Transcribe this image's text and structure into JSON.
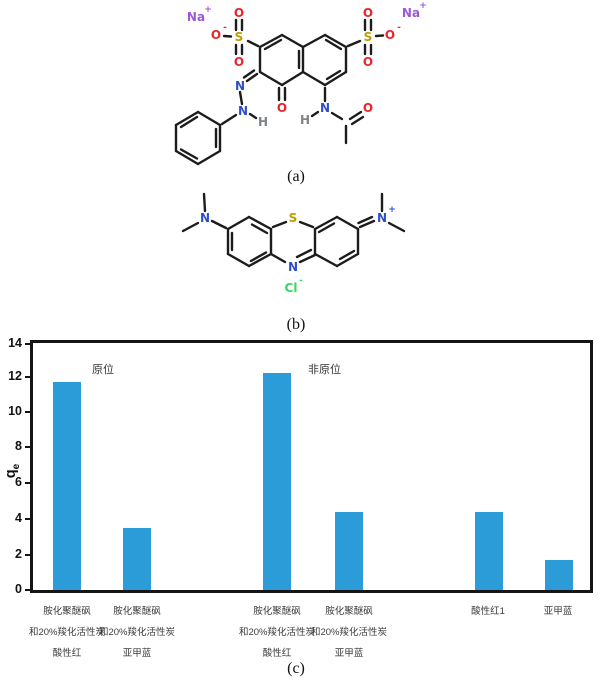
{
  "figure": {
    "panel_a": {
      "caption": "(a)",
      "na": "Na",
      "s": "S",
      "o": "O",
      "n": "N",
      "h": "H",
      "plus": "+",
      "minus": "-"
    },
    "panel_b": {
      "caption": "(b)",
      "n": "N",
      "s": "S",
      "cl": "Cl",
      "plus": "+",
      "minus": "-"
    },
    "panel_c": {
      "caption": "(c)"
    }
  },
  "colors": {
    "nitrogen": "#2f4ecc",
    "oxygen": "#e8262a",
    "sulfur": "#b9a100",
    "sodium": "#9b59d9",
    "hydrogen": "#7e848b",
    "chloride": "#35d95f",
    "bond": "#1c1c1c",
    "bar": "#2b9cd8"
  },
  "chart_data": {
    "type": "bar",
    "title": "",
    "xlabel": "",
    "ylabel": "qe",
    "ylabel_main": "q",
    "ylabel_sub": "e",
    "ylim": [
      0,
      14
    ],
    "yticks": [
      "14",
      "12",
      "10",
      "8",
      "6",
      "4",
      "2",
      "0"
    ],
    "grid": false,
    "legend": "none",
    "bar_color": "#2b9cd8",
    "categories": [
      [
        "胺化聚醚砜",
        "和20%羧化活性炭",
        "酸性红"
      ],
      [
        "胺化聚醚砜",
        "和20%羧化活性炭",
        "亚甲蓝"
      ],
      [
        "胺化聚醚砜",
        "和20%羧化活性炭",
        "酸性红"
      ],
      [
        "胺化聚醚砜",
        "和20%羧化活性炭",
        "亚甲蓝"
      ],
      [
        "酸性红1"
      ],
      [
        "亚甲蓝"
      ]
    ],
    "values": [
      11.8,
      3.5,
      12.3,
      4.4,
      4.4,
      1.7
    ],
    "annotations": [
      {
        "text": "原位"
      },
      {
        "text": "非原位"
      }
    ]
  }
}
